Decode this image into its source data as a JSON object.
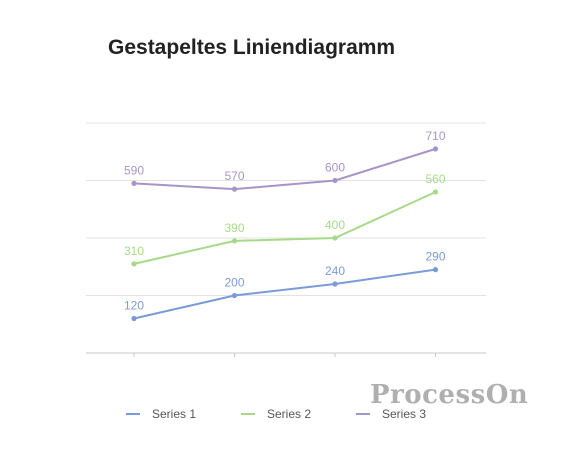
{
  "chart_data": {
    "type": "line",
    "title": "Gestapeltes Liniendiagramm",
    "categories": [
      "",
      "",
      "",
      ""
    ],
    "series": [
      {
        "name": "Series 1",
        "values": [
          120,
          200,
          240,
          290
        ],
        "color": "#7b9bd8"
      },
      {
        "name": "Series 2",
        "values": [
          310,
          390,
          400,
          560
        ],
        "color": "#a8d98a"
      },
      {
        "name": "Series 3",
        "values": [
          590,
          570,
          600,
          710
        ],
        "color": "#a696c8"
      }
    ],
    "ylim": [
      0,
      800
    ],
    "y_gridlines": [
      200,
      400,
      600,
      800
    ],
    "grid": true,
    "axis_labels_visible": false,
    "data_labels": true,
    "legend_position": "bottom"
  },
  "watermark": "ProcessOn"
}
